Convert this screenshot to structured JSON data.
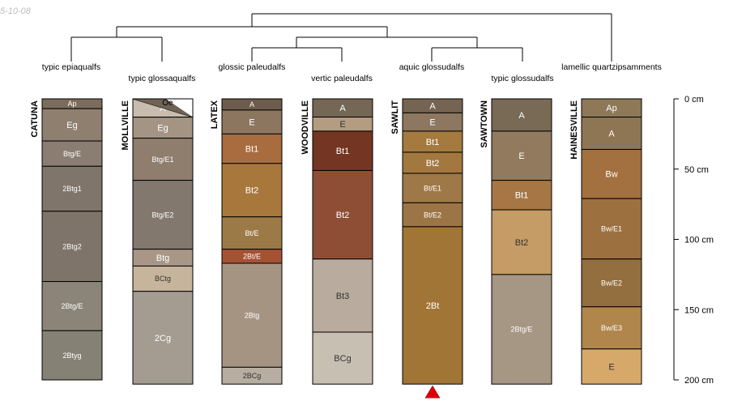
{
  "date_stamp": "5-10-08",
  "colors": {
    "line": "#000000",
    "marker": "#e00000"
  },
  "depth_scale": {
    "min": 0,
    "max": 200,
    "ticks": [
      {
        "value": 0,
        "label": "0 cm"
      },
      {
        "value": 50,
        "label": "50 cm"
      },
      {
        "value": 100,
        "label": "100 cm"
      },
      {
        "value": 150,
        "label": "150 cm"
      },
      {
        "value": 200,
        "label": "200 cm"
      }
    ]
  },
  "profiles": [
    {
      "name": "CATUNA",
      "taxon": "typic epiaqualfs",
      "bottom": 200,
      "horizons": [
        {
          "name": "Ap",
          "top": 0,
          "bottom": 7,
          "color": "#7b6c5c",
          "text_color": "#ffffff"
        },
        {
          "name": "Eg",
          "top": 7,
          "bottom": 30,
          "color": "#8e7f6f",
          "text_color": "#ffffff"
        },
        {
          "name": "Btg/E",
          "top": 30,
          "bottom": 48,
          "color": "#8a7e72",
          "text_color": "#ffffff"
        },
        {
          "name": "2Btg1",
          "top": 48,
          "bottom": 80,
          "color": "#7f756b",
          "text_color": "#ffffff"
        },
        {
          "name": "2Btg2",
          "top": 80,
          "bottom": 130,
          "color": "#7f746a",
          "text_color": "#ffffff"
        },
        {
          "name": "2Btg/E",
          "top": 130,
          "bottom": 165,
          "color": "#8a8578",
          "text_color": "#ffffff"
        },
        {
          "name": "2Btyg",
          "top": 165,
          "bottom": 200,
          "color": "#858174",
          "text_color": "#ffffff"
        }
      ]
    },
    {
      "name": "MOLLVILLE",
      "taxon": "typic glossaqualfs",
      "bottom": 203,
      "oe_label": "Oe",
      "horizons": [
        {
          "name": "A",
          "top": 0,
          "bottom": 13,
          "color": "#c7bcae",
          "text_color": "#ffffff"
        },
        {
          "name": "Eg",
          "top": 13,
          "bottom": 28,
          "color": "#a39484",
          "text_color": "#ffffff"
        },
        {
          "name": "Btg/E1",
          "top": 28,
          "bottom": 58,
          "color": "#8f7d6d",
          "text_color": "#ffffff"
        },
        {
          "name": "Btg/E2",
          "top": 58,
          "bottom": 107,
          "color": "#83786e",
          "text_color": "#ffffff"
        },
        {
          "name": "Btg",
          "top": 107,
          "bottom": 119,
          "color": "#a89686",
          "text_color": "#ffffff"
        },
        {
          "name": "BCtg",
          "top": 119,
          "bottom": 137,
          "color": "#c7b49c",
          "text_color": "#333333"
        },
        {
          "name": "2Cg",
          "top": 137,
          "bottom": 203,
          "color": "#a49c91",
          "text_color": "#ffffff"
        }
      ]
    },
    {
      "name": "LATEX",
      "taxon": "glossic paleudalfs",
      "bottom": 203,
      "horizons": [
        {
          "name": "A",
          "top": 0,
          "bottom": 8,
          "color": "#6d5c4b",
          "text_color": "#ffffff"
        },
        {
          "name": "E",
          "top": 8,
          "bottom": 25,
          "color": "#8d7660",
          "text_color": "#ffffff"
        },
        {
          "name": "Bt1",
          "top": 25,
          "bottom": 46,
          "color": "#a86c3f",
          "text_color": "#ffffff"
        },
        {
          "name": "Bt2",
          "top": 46,
          "bottom": 84,
          "color": "#a8773c",
          "text_color": "#ffffff"
        },
        {
          "name": "Bt/E",
          "top": 84,
          "bottom": 107,
          "color": "#9c7a47",
          "text_color": "#ffffff"
        },
        {
          "name": "2Bt/E",
          "top": 107,
          "bottom": 117,
          "color": "#a55234",
          "text_color": "#ffffff"
        },
        {
          "name": "2Btg",
          "top": 117,
          "bottom": 191,
          "color": "#a69482",
          "text_color": "#ffffff"
        },
        {
          "name": "2BCg",
          "top": 191,
          "bottom": 203,
          "color": "#b7ada0",
          "text_color": "#333333"
        }
      ]
    },
    {
      "name": "WOODVILLE",
      "taxon": "vertic paleudalfs",
      "bottom": 203,
      "horizons": [
        {
          "name": "A",
          "top": 0,
          "bottom": 13,
          "color": "#756755",
          "text_color": "#ffffff"
        },
        {
          "name": "E",
          "top": 13,
          "bottom": 23,
          "color": "#b39c7f",
          "text_color": "#333333"
        },
        {
          "name": "Bt1",
          "top": 23,
          "bottom": 51,
          "color": "#743522",
          "text_color": "#ffffff"
        },
        {
          "name": "Bt2",
          "top": 51,
          "bottom": 114,
          "color": "#8e4e36",
          "text_color": "#ffffff"
        },
        {
          "name": "Bt3",
          "top": 114,
          "bottom": 166,
          "color": "#b9ab9d",
          "text_color": "#333333"
        },
        {
          "name": "BCg",
          "top": 166,
          "bottom": 203,
          "color": "#c8bfb3",
          "text_color": "#333333"
        }
      ]
    },
    {
      "name": "SAWLIT",
      "taxon": "aquic glossudalfs",
      "bottom": 203,
      "marker": true,
      "horizons": [
        {
          "name": "A",
          "top": 0,
          "bottom": 10,
          "color": "#756451",
          "text_color": "#ffffff"
        },
        {
          "name": "E",
          "top": 10,
          "bottom": 23,
          "color": "#8d7760",
          "text_color": "#ffffff"
        },
        {
          "name": "Bt1",
          "top": 23,
          "bottom": 38,
          "color": "#a57a3f",
          "text_color": "#ffffff"
        },
        {
          "name": "Bt2",
          "top": 38,
          "bottom": 53,
          "color": "#a3783f",
          "text_color": "#ffffff"
        },
        {
          "name": "Bt/E1",
          "top": 53,
          "bottom": 74,
          "color": "#9e7846",
          "text_color": "#ffffff"
        },
        {
          "name": "Bt/E2",
          "top": 74,
          "bottom": 91,
          "color": "#9c7546",
          "text_color": "#ffffff"
        },
        {
          "name": "2Bt",
          "top": 91,
          "bottom": 203,
          "color": "#a07535",
          "text_color": "#ffffff"
        }
      ]
    },
    {
      "name": "SAWTOWN",
      "taxon": "typic glossudalfs",
      "bottom": 203,
      "horizons": [
        {
          "name": "A",
          "top": 0,
          "bottom": 23,
          "color": "#786a55",
          "text_color": "#ffffff"
        },
        {
          "name": "E",
          "top": 23,
          "bottom": 58,
          "color": "#927a5e",
          "text_color": "#ffffff"
        },
        {
          "name": "Bt1",
          "top": 58,
          "bottom": 79,
          "color": "#a67744",
          "text_color": "#ffffff"
        },
        {
          "name": "Bt2",
          "top": 79,
          "bottom": 125,
          "color": "#c59c65",
          "text_color": "#333333"
        },
        {
          "name": "2Btg/E",
          "top": 125,
          "bottom": 203,
          "color": "#a69684",
          "text_color": "#ffffff"
        }
      ]
    },
    {
      "name": "HAINESVILLE",
      "taxon": "lamellic quartzipsamments",
      "bottom": 203,
      "horizons": [
        {
          "name": "Ap",
          "top": 0,
          "bottom": 13,
          "color": "#8e7858",
          "text_color": "#ffffff"
        },
        {
          "name": "A",
          "top": 13,
          "bottom": 36,
          "color": "#8e7654",
          "text_color": "#ffffff"
        },
        {
          "name": "Bw",
          "top": 36,
          "bottom": 71,
          "color": "#a3703f",
          "text_color": "#ffffff"
        },
        {
          "name": "Bw/E1",
          "top": 71,
          "bottom": 114,
          "color": "#9d7040",
          "text_color": "#ffffff"
        },
        {
          "name": "Bw/E2",
          "top": 114,
          "bottom": 148,
          "color": "#936e3e",
          "text_color": "#ffffff"
        },
        {
          "name": "Bw/E3",
          "top": 148,
          "bottom": 178,
          "color": "#b0864d",
          "text_color": "#ffffff"
        },
        {
          "name": "E",
          "top": 178,
          "bottom": 203,
          "color": "#d6a96b",
          "text_color": "#333333"
        }
      ]
    }
  ]
}
